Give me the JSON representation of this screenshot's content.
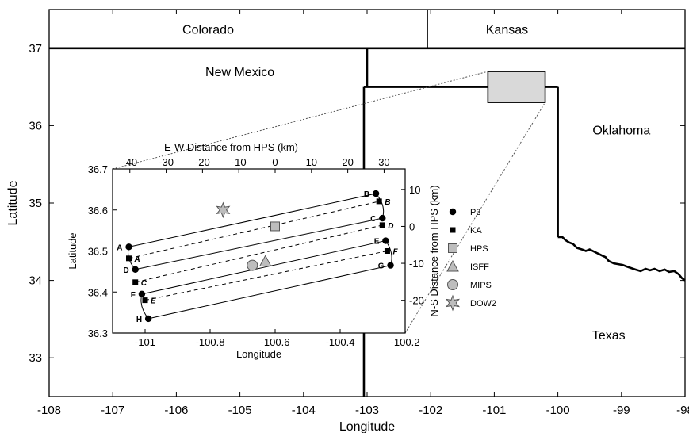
{
  "chart_data": {
    "type": "map",
    "main": {
      "xlabel": "Longitude",
      "ylabel": "Latitude",
      "xlim": [
        -108,
        -98
      ],
      "ylim": [
        32.5,
        37.5
      ],
      "x_ticks": [
        -108,
        -107,
        -106,
        -105,
        -104,
        -103,
        -102,
        -101,
        -100,
        -99,
        -98
      ],
      "y_ticks": [
        33,
        34,
        35,
        36,
        37
      ],
      "states": [
        {
          "name": "Colorado",
          "lon": -105.5,
          "lat": 37.25
        },
        {
          "name": "Kansas",
          "lon": -100.8,
          "lat": 37.25
        },
        {
          "name": "New Mexico",
          "lon": -105.0,
          "lat": 36.7
        },
        {
          "name": "Oklahoma",
          "lon": -99.0,
          "lat": 35.95
        },
        {
          "name": "Texas",
          "lon": -99.2,
          "lat": 33.3
        }
      ],
      "study_area": {
        "lon": [
          -101.1,
          -100.2
        ],
        "lat": [
          36.3,
          36.7
        ]
      }
    },
    "inset": {
      "xlabel": "Longitude",
      "ylabel": "Latitude",
      "top_xlabel": "E-W Distance from HPS (km)",
      "right_ylabel": "N-S Distance from HPS (km)",
      "xlim": [
        -101.1,
        -100.2
      ],
      "ylim": [
        36.3,
        36.7
      ],
      "x_ticks": [
        -101,
        -100.8,
        -100.6,
        -100.4,
        -100.2
      ],
      "y_ticks": [
        36.3,
        36.4,
        36.5,
        36.6,
        36.7
      ],
      "top_ticks": [
        -40,
        -30,
        -20,
        -10,
        0,
        10,
        20,
        30
      ],
      "right_ticks": [
        10,
        0,
        -10,
        -20
      ],
      "p3_points": [
        {
          "label": "A",
          "lon": -101.05,
          "lat": 36.51
        },
        {
          "label": "B",
          "lon": -100.29,
          "lat": 36.64
        },
        {
          "label": "C",
          "lon": -100.27,
          "lat": 36.58
        },
        {
          "label": "D",
          "lon": -101.03,
          "lat": 36.455
        },
        {
          "label": "E",
          "lon": -100.26,
          "lat": 36.525
        },
        {
          "label": "F",
          "lon": -101.01,
          "lat": 36.395
        },
        {
          "label": "G",
          "lon": -100.245,
          "lat": 36.465
        },
        {
          "label": "H",
          "lon": -100.99,
          "lat": 36.335
        }
      ],
      "ka_points": [
        {
          "label": "A",
          "lon": -101.05,
          "lat": 36.482
        },
        {
          "label": "B",
          "lon": -100.28,
          "lat": 36.621
        },
        {
          "label": "C",
          "lon": -101.03,
          "lat": 36.424
        },
        {
          "label": "D",
          "lon": -100.27,
          "lat": 36.563
        },
        {
          "label": "E",
          "lon": -101.0,
          "lat": 36.38
        },
        {
          "label": "F",
          "lon": -100.255,
          "lat": 36.5
        }
      ],
      "hps": {
        "lon": -100.6,
        "lat": 36.56
      },
      "isff": {
        "lon": -100.63,
        "lat": 36.475
      },
      "mips": {
        "lon": -100.67,
        "lat": 36.465
      },
      "dow2": {
        "lon": -100.76,
        "lat": 36.6
      },
      "legend": [
        "P3",
        "KA",
        "HPS",
        "ISFF",
        "MIPS",
        "DOW2"
      ]
    }
  }
}
